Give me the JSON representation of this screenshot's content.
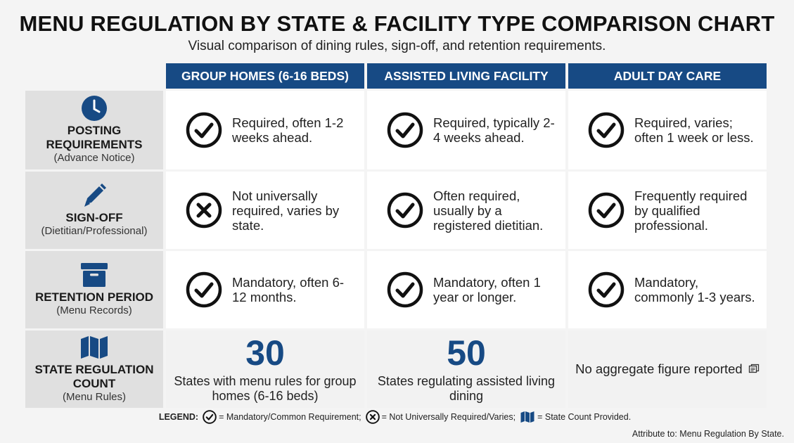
{
  "header": {
    "title": "MENU REGULATION BY STATE & FACILITY TYPE COMPARISON CHART",
    "subtitle": "Visual comparison of dining rules, sign-off, and retention requirements."
  },
  "columns": [
    {
      "label": "GROUP HOMES (6-16 BEDS)"
    },
    {
      "label": "ASSISTED LIVING FACILITY"
    },
    {
      "label": "ADULT DAY CARE"
    }
  ],
  "rows": [
    {
      "icon": "clock-icon",
      "title": "POSTING REQUIREMENTS",
      "subtitle": "(Advance Notice)",
      "cells": [
        {
          "mark": "check",
          "text": "Required, often 1-2 weeks ahead."
        },
        {
          "mark": "check",
          "text": "Required, typically 2-4 weeks ahead."
        },
        {
          "mark": "check",
          "text": "Required, varies; often 1 week or less."
        }
      ]
    },
    {
      "icon": "pen-icon",
      "title": "SIGN-OFF",
      "subtitle": "(Dietitian/Professional)",
      "cells": [
        {
          "mark": "x",
          "text": "Not universally required, varies by state."
        },
        {
          "mark": "check",
          "text": "Often required, usually by a registered dietitian."
        },
        {
          "mark": "check",
          "text": "Frequently required by qualified professional."
        }
      ]
    },
    {
      "icon": "archive-box-icon",
      "title": "RETENTION PERIOD",
      "subtitle": "(Menu Records)",
      "cells": [
        {
          "mark": "check",
          "text": "Mandatory, often 6-12 months."
        },
        {
          "mark": "check",
          "text": "Mandatory, often 1 year or longer."
        },
        {
          "mark": "check",
          "text": "Mandatory, commonly 1-3 years."
        }
      ]
    },
    {
      "icon": "map-icon",
      "title": "STATE REGULATION COUNT",
      "subtitle": "(Menu Rules)",
      "cells": [
        {
          "number": "30",
          "caption": "States with menu rules for group homes (6-16 beds)"
        },
        {
          "number": "50",
          "caption": "States regulating assisted living dining"
        },
        {
          "none": "No aggregate figure reported"
        }
      ]
    }
  ],
  "legend": {
    "label": "LEGEND:",
    "items": [
      {
        "icon": "check-circle-icon",
        "text": "= Mandatory/Common Requirement;"
      },
      {
        "icon": "x-circle-icon",
        "text": "= Not Universally Required/Varies;"
      },
      {
        "icon": "map-icon",
        "text": "= State Count Provided."
      }
    ]
  },
  "attribution": "Attribute to: Menu Regulation By State.",
  "colors": {
    "accent": "#174a84",
    "row_header_bg": "#e0e0e0",
    "cell_bg": "#ffffff",
    "page_bg": "#f4f4f4"
  }
}
